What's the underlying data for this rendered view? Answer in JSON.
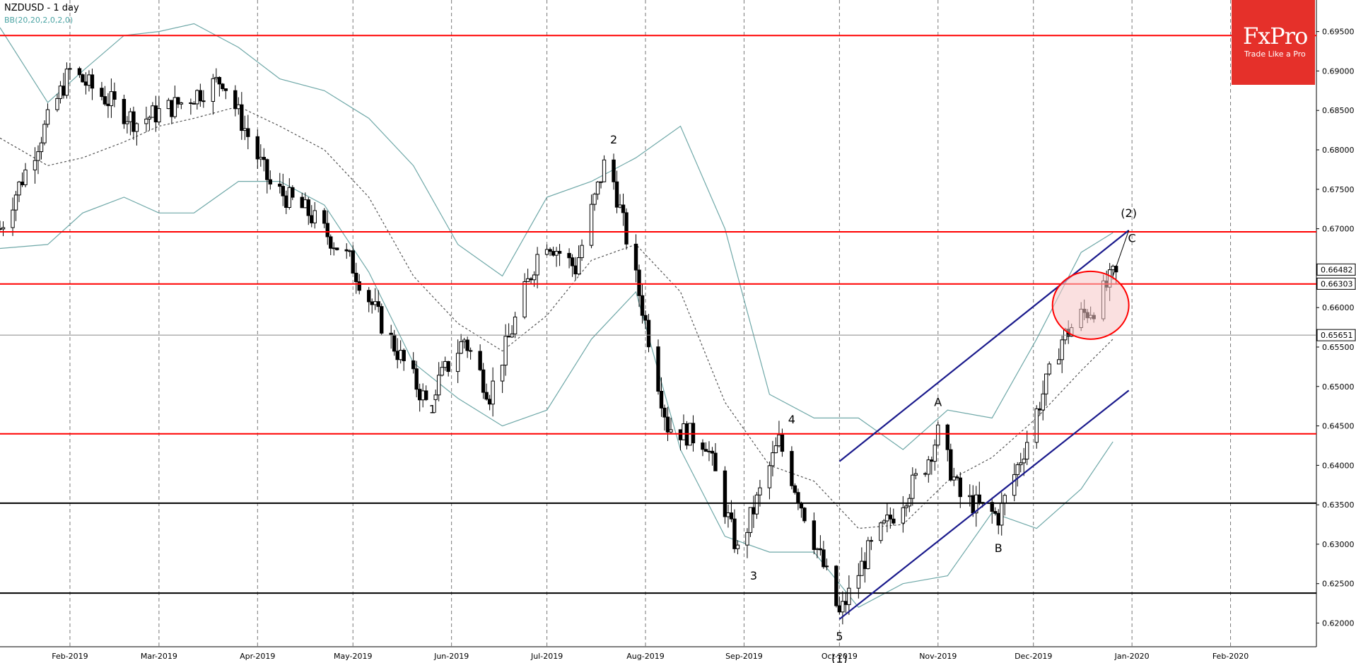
{
  "header": {
    "title": "NZDUSD - 1 day",
    "indicator": "BB(20,20,2,0,2,0)"
  },
  "logo": {
    "brand": "FxPro",
    "tagline": "Trade Like a Pro"
  },
  "colors": {
    "support_resistance": "#ff0000",
    "horizontal_level": "#000000",
    "channel": "#1a1a8c",
    "bollinger": "#6fa8a8",
    "highlight_fill": "#f5c6c6",
    "bullish_arrow": "#1a9c1a",
    "bearish_arrow": "#d01010"
  },
  "chart_data": {
    "type": "candlestick",
    "title": "NZDUSD - 1 day",
    "ylim": [
      0.617,
      0.699
    ],
    "y_ticks": [
      "0.69500",
      "0.69000",
      "0.68500",
      "0.68000",
      "0.67500",
      "0.67000",
      "0.66500",
      "0.66000",
      "0.65500",
      "0.65000",
      "0.64500",
      "0.64000",
      "0.63500",
      "0.63000",
      "0.62500",
      "0.62000"
    ],
    "y_tick_values": [
      0.695,
      0.69,
      0.685,
      0.68,
      0.675,
      0.67,
      0.665,
      0.66,
      0.655,
      0.65,
      0.645,
      0.64,
      0.635,
      0.63,
      0.625,
      0.62
    ],
    "x_ticks": [
      "Feb-2019",
      "Mar-2019",
      "Apr-2019",
      "May-2019",
      "Jun-2019",
      "Jul-2019",
      "Aug-2019",
      "Sep-2019",
      "Oct-2019",
      "Nov-2019",
      "Dec-2019",
      "Jan-2020",
      "Feb-2020"
    ],
    "x_range": [
      "2019-01-10",
      "2020-02-28"
    ],
    "x_tick_dates": [
      "2019-02-01",
      "2019-03-01",
      "2019-04-01",
      "2019-05-01",
      "2019-06-01",
      "2019-07-01",
      "2019-08-01",
      "2019-09-01",
      "2019-10-01",
      "2019-11-01",
      "2019-12-01",
      "2020-01-01",
      "2020-02-01"
    ],
    "price_labels": [
      {
        "text": "0.66482",
        "value": 0.66482
      },
      {
        "text": "0.66303",
        "value": 0.66303
      },
      {
        "text": "0.65651",
        "value": 0.65651
      }
    ],
    "current_price": 0.65651,
    "red_levels": [
      0.6945,
      0.6696,
      0.663,
      0.644
    ],
    "black_levels": [
      0.6352,
      0.6238
    ],
    "channel": {
      "upper": [
        [
          "2019-10-01",
          0.6405
        ],
        [
          "2019-12-31",
          0.6698
        ]
      ],
      "lower": [
        [
          "2019-10-01",
          0.6205
        ],
        [
          "2019-12-31",
          0.6495
        ]
      ]
    },
    "highlight_circle": {
      "center": [
        "2019-12-19",
        0.6603
      ],
      "radius_days": 12,
      "radius_price": 0.0043
    },
    "wave_labels": [
      {
        "text": "1",
        "date": "2019-05-26",
        "price": 0.6466
      },
      {
        "text": "2",
        "date": "2019-07-22",
        "price": 0.6808
      },
      {
        "text": "3",
        "date": "2019-09-04",
        "price": 0.6255
      },
      {
        "text": "4",
        "date": "2019-09-16",
        "price": 0.6453
      },
      {
        "text": "5",
        "date": "2019-10-01",
        "price": 0.6178
      },
      {
        "text": "(1)",
        "date": "2019-10-01",
        "price": 0.615
      },
      {
        "text": "A",
        "date": "2019-11-01",
        "price": 0.6475
      },
      {
        "text": "B",
        "date": "2019-11-20",
        "price": 0.629
      },
      {
        "text": "(2)",
        "date": "2019-12-31",
        "price": 0.6715
      },
      {
        "text": "C",
        "date": "2020-01-01",
        "price": 0.6683
      }
    ],
    "bollinger_key": [
      [
        "2019-01-10",
        0.6815,
        0.6955,
        0.6675
      ],
      [
        "2019-01-25",
        0.678,
        0.686,
        0.668
      ],
      [
        "2019-02-05",
        0.679,
        0.69,
        0.672
      ],
      [
        "2019-02-18",
        0.681,
        0.6945,
        0.674
      ],
      [
        "2019-03-01",
        0.683,
        0.695,
        0.672
      ],
      [
        "2019-03-12",
        0.684,
        0.696,
        0.672
      ],
      [
        "2019-03-26",
        0.6855,
        0.693,
        0.676
      ],
      [
        "2019-04-08",
        0.683,
        0.689,
        0.676
      ],
      [
        "2019-04-22",
        0.68,
        0.6875,
        0.673
      ],
      [
        "2019-05-06",
        0.674,
        0.684,
        0.6645
      ],
      [
        "2019-05-20",
        0.664,
        0.678,
        0.653
      ],
      [
        "2019-06-03",
        0.658,
        0.668,
        0.6485
      ],
      [
        "2019-06-17",
        0.6545,
        0.664,
        0.645
      ],
      [
        "2019-07-01",
        0.659,
        0.674,
        0.647
      ],
      [
        "2019-07-15",
        0.666,
        0.676,
        0.656
      ],
      [
        "2019-07-29",
        0.668,
        0.679,
        0.662
      ],
      [
        "2019-08-12",
        0.662,
        0.683,
        0.642
      ],
      [
        "2019-08-26",
        0.648,
        0.67,
        0.631
      ],
      [
        "2019-09-09",
        0.64,
        0.649,
        0.629
      ],
      [
        "2019-09-23",
        0.638,
        0.646,
        0.629
      ],
      [
        "2019-10-07",
        0.632,
        0.646,
        0.622
      ],
      [
        "2019-10-21",
        0.6325,
        0.642,
        0.625
      ],
      [
        "2019-11-04",
        0.638,
        0.647,
        0.626
      ],
      [
        "2019-11-18",
        0.641,
        0.646,
        0.634
      ],
      [
        "2019-12-02",
        0.646,
        0.656,
        0.632
      ],
      [
        "2019-12-16",
        0.652,
        0.667,
        0.637
      ],
      [
        "2019-12-26",
        0.656,
        0.6695,
        0.643
      ]
    ]
  }
}
